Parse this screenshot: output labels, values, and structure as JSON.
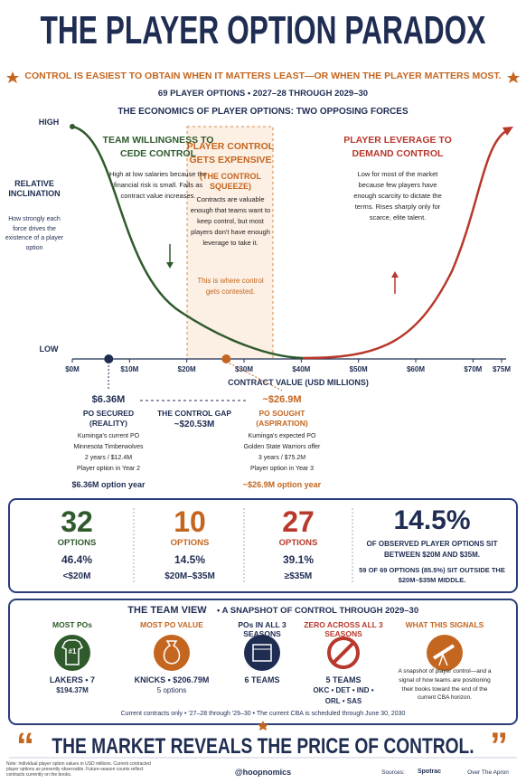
{
  "header": {
    "title": "THE PLAYER OPTION PARADOX",
    "subtitle": "CONTROL IS EASIEST TO OBTAIN WHEN IT MATTERS LEAST—OR WHEN THE PLAYER MATTERS MOST.",
    "meta": "69 PLAYER OPTIONS  •  2027–28 THROUGH 2029–30"
  },
  "chart": {
    "title": "THE ECONOMICS OF PLAYER OPTIONS: TWO OPPOSING FORCES",
    "y_high": "HIGH",
    "y_low": "LOW",
    "y_label": "RELATIVE INCLINATION",
    "y_note": "How strongly each force drives the existence of a player option",
    "x_label": "CONTRACT VALUE (USD MILLIONS)",
    "xlim": [
      0,
      75
    ],
    "xticks": [
      {
        "value": 0,
        "label": "$0M"
      },
      {
        "value": 10,
        "label": "$10M"
      },
      {
        "value": 20,
        "label": "$20M"
      },
      {
        "value": 30,
        "label": "$30M"
      },
      {
        "value": 40,
        "label": "$40M"
      },
      {
        "value": 50,
        "label": "$50M"
      },
      {
        "value": 60,
        "label": "$60M"
      },
      {
        "value": 70,
        "label": "$70M"
      },
      {
        "value": 75,
        "label": "$75M"
      }
    ],
    "zones": [
      {
        "title": "TEAM WILLINGNESS TO CEDE CONTROL",
        "body": "High at low salaries because the financial risk is small. Falls as contract value increases."
      },
      {
        "title": "PLAYER CONTROL GETS EXPENSIVE",
        "subtitle": "(THE CONTROL SQUEEZE)",
        "body": "Contracts are valuable enough that teams want to keep control, but most players don't have enough leverage to take it.",
        "note": "This is where control gets contested."
      },
      {
        "title": "PLAYER LEVERAGE TO DEMAND CONTROL",
        "body": "Low for most of the market because few players have enough scarcity to dictate the terms. Rises sharply only for scarce, elite talent."
      }
    ],
    "markers": [
      {
        "value": 6.36,
        "label": "$6.36M",
        "title": "PO SECURED",
        "subtitle": "(REALITY)",
        "details": [
          "Kuminga's current PO",
          "Minnesota Timberwolves",
          "2 years / $12.4M",
          "Player option in Year 2"
        ],
        "footer": "$6.36M option year"
      },
      {
        "value": 26.9,
        "label": "~$26.9M",
        "title": "PO SOUGHT",
        "subtitle": "(ASPIRATION)",
        "details": [
          "Kuminga's expected PO",
          "Golden State Warriors offer",
          "3 years / $75.2M",
          "Player option in Year 3"
        ],
        "footer": "~$26.9M option year"
      }
    ],
    "gap": {
      "title": "THE CONTROL GAP",
      "value": "~$20.53M"
    }
  },
  "stats": [
    {
      "count": 32,
      "unit": "OPTIONS",
      "share": "46.4%",
      "range": "<$20M"
    },
    {
      "count": 10,
      "unit": "OPTIONS",
      "share": "14.5%",
      "range": "$20M–$35M"
    },
    {
      "count": 27,
      "unit": "OPTIONS",
      "share": "39.1%",
      "range": "≥$35M"
    }
  ],
  "stats_summary": {
    "share": "14.5%",
    "text": "OF OBSERVED PLAYER OPTIONS SIT BETWEEN $20M AND $35M.",
    "note": "59 OF 69 OPTIONS (85.5%) SIT OUTSIDE THE $20M–$35M MIDDLE."
  },
  "team_view": {
    "title": "THE TEAM VIEW",
    "subtitle": "•  A SNAPSHOT OF CONTROL THROUGH 2029–30",
    "badge": "#1",
    "columns": [
      {
        "title": "MOST POs",
        "lines": [
          "LAKERS • 7",
          "$194.37M"
        ]
      },
      {
        "title": "MOST PO VALUE",
        "lines": [
          "KNICKS • $206.79M",
          "5 options"
        ]
      },
      {
        "title": "POs IN ALL 3 SEASONS",
        "lines": [
          "6 TEAMS"
        ]
      },
      {
        "title": "ZERO ACROSS ALL 3 SEASONS",
        "lines": [
          "5 TEAMS",
          "OKC • DET • IND •",
          "ORL • SAS"
        ]
      },
      {
        "title": "WHAT THIS SIGNALS",
        "lines": [
          "A snapshot of player control—and a signal of how teams are positioning their books toward the end of the current CBA horizon."
        ]
      }
    ],
    "footer": "Current contracts only  •  '27–28 through '29–30  •  The current CBA is scheduled through June 30, 2030"
  },
  "quote": {
    "open_mark": "“",
    "text": "THE MARKET REVEALS THE PRICE OF CONTROL.",
    "close_mark": "”"
  },
  "footer": {
    "note": "Note: Individual player option values in USD millions. Current contracted player options as presently observable. Future-season counts reflect contracts currently on the books.",
    "handle": "@hoopnomics",
    "sources_label": "Sources:",
    "sources": [
      "Spotrac",
      "Over The Apron"
    ]
  }
}
